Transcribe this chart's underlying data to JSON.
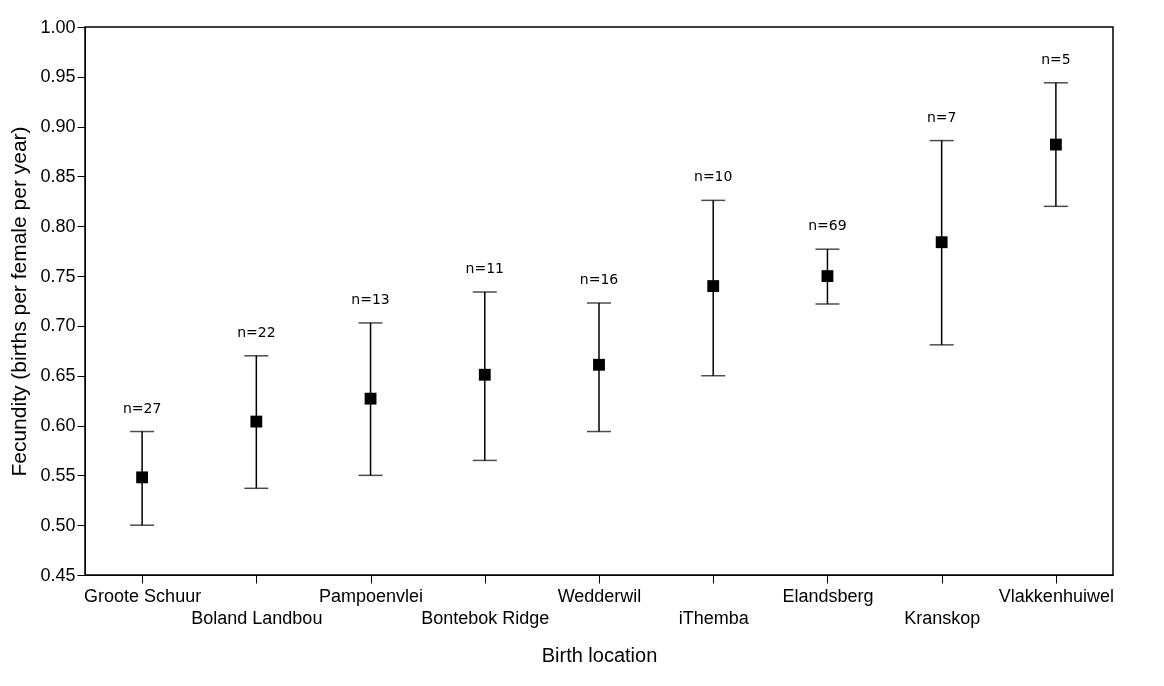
{
  "chart_data": {
    "type": "scatter",
    "xlabel": "Birth location",
    "ylabel": "Fecundity (births per female per year)",
    "categories": [
      "Groote Schuur",
      "Boland Landbou",
      "Pampoenvlei",
      "Bontebok Ridge",
      "Wedderwil",
      "iThemba",
      "Elandsberg",
      "Kranskop",
      "Vlakkenhuiwel"
    ],
    "values": [
      0.548,
      0.604,
      0.627,
      0.651,
      0.661,
      0.74,
      0.75,
      0.784,
      0.882
    ],
    "errors": [
      [
        0.5,
        0.594
      ],
      [
        0.537,
        0.67
      ],
      [
        0.55,
        0.703
      ],
      [
        0.565,
        0.734
      ],
      [
        0.594,
        0.723
      ],
      [
        0.65,
        0.826
      ],
      [
        0.722,
        0.777
      ],
      [
        0.681,
        0.886
      ],
      [
        0.82,
        0.944
      ]
    ],
    "color": "#000000",
    "marker": "square",
    "ylim": [
      0.45,
      1.0
    ],
    "yticks": [
      {
        "value": 0.45,
        "label": "0.45"
      },
      {
        "value": 0.5,
        "label": "0.50"
      },
      {
        "value": 0.55,
        "label": "0.55"
      },
      {
        "value": 0.6,
        "label": "0.60"
      },
      {
        "value": 0.65,
        "label": "0.65"
      },
      {
        "value": 0.7,
        "label": "0.70"
      },
      {
        "value": 0.75,
        "label": "0.75"
      },
      {
        "value": 0.8,
        "label": "0.80"
      },
      {
        "value": 0.85,
        "label": "0.85"
      },
      {
        "value": 0.9,
        "label": "0.90"
      },
      {
        "value": 0.95,
        "label": "0.95"
      },
      {
        "value": 1.0,
        "label": "1.00"
      }
    ],
    "grid": false,
    "annotations": [
      "n=27",
      "n=22",
      "n=13",
      "n=11",
      "n=16",
      "n=10",
      "n=69",
      "n=7",
      "n=5"
    ]
  }
}
